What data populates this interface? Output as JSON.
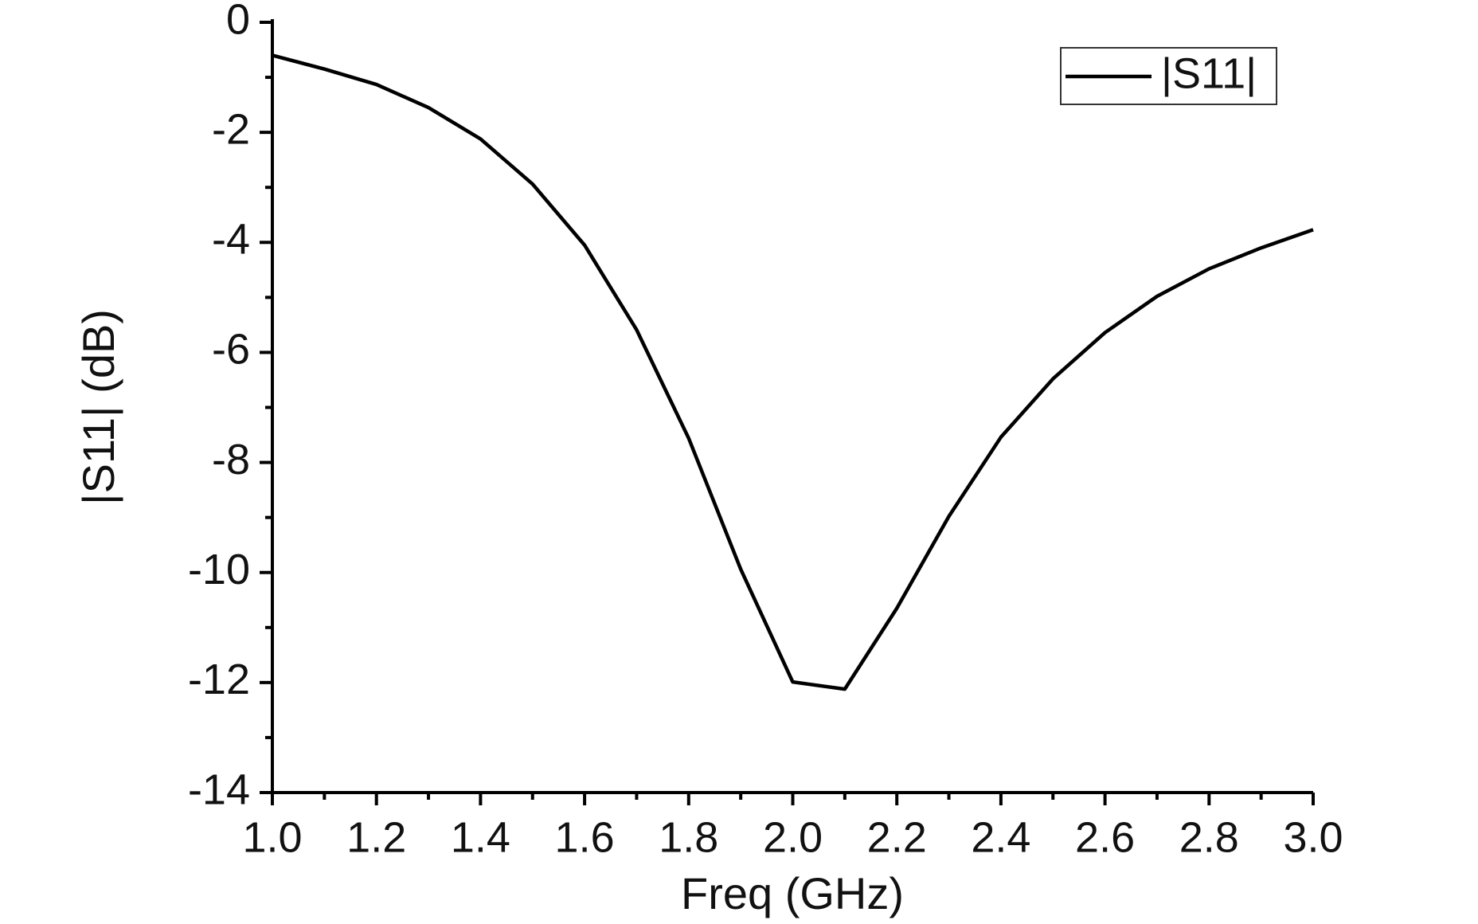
{
  "chart_data": {
    "type": "line",
    "x_label": "Freq (GHz)",
    "y_label": "|S11| (dB)",
    "x": [
      1.0,
      1.1,
      1.2,
      1.3,
      1.4,
      1.5,
      1.6,
      1.7,
      1.8,
      1.9,
      2.0,
      2.1,
      2.2,
      2.3,
      2.4,
      2.5,
      2.6,
      2.7,
      2.8,
      2.9,
      3.0
    ],
    "series": [
      {
        "name": "|S11|",
        "color": "#000000",
        "values": [
          -0.6,
          -0.85,
          -1.13,
          -1.55,
          -2.12,
          -2.94,
          -4.05,
          -5.59,
          -7.56,
          -9.94,
          -11.99,
          -12.12,
          -10.65,
          -8.98,
          -7.54,
          -6.48,
          -5.64,
          -4.98,
          -4.48,
          -4.1,
          -3.77
        ]
      }
    ],
    "xlim": [
      1.0,
      3.0
    ],
    "xticks": [
      {
        "value": 1.0,
        "label": "1.0"
      },
      {
        "value": 1.2,
        "label": "1.2"
      },
      {
        "value": 1.4,
        "label": "1.4"
      },
      {
        "value": 1.6,
        "label": "1.6"
      },
      {
        "value": 1.8,
        "label": "1.8"
      },
      {
        "value": 2.0,
        "label": "2.0"
      },
      {
        "value": 2.2,
        "label": "2.2"
      },
      {
        "value": 2.4,
        "label": "2.4"
      },
      {
        "value": 2.6,
        "label": "2.6"
      },
      {
        "value": 2.8,
        "label": "2.8"
      },
      {
        "value": 3.0,
        "label": "3.0"
      }
    ],
    "ylim": [
      -14,
      0
    ],
    "yticks": [
      0,
      -2,
      -4,
      -6,
      -8,
      -10,
      -12,
      -14
    ],
    "grid": false,
    "legend": "upper right"
  }
}
